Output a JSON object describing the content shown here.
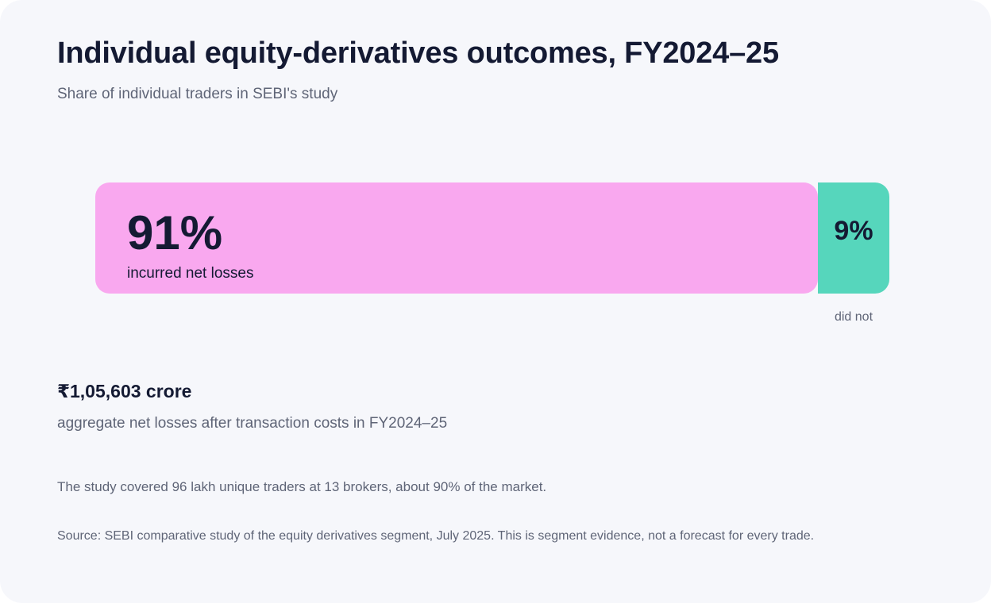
{
  "chart_data": {
    "type": "bar",
    "title": "Individual equity-derivatives outcomes, FY2024–25",
    "subtitle": "Share of individual traders in SEBI's study",
    "unit": "%",
    "segments": [
      {
        "label": "incurred net losses",
        "value": 91,
        "display": "91%",
        "color": "#f9a8ef"
      },
      {
        "label": "did not",
        "value": 9,
        "display": "9%",
        "color": "#56d6bc"
      }
    ]
  },
  "stat": {
    "value": "₹1,05,603 crore",
    "description": "aggregate net losses after transaction costs in FY2024–25"
  },
  "note": "The study covered 96 lakh unique traders at 13 brokers, about 90% of the market.",
  "source": "Source: SEBI comparative study of the equity derivatives segment, July 2025. This is segment evidence, not a forecast for every trade."
}
